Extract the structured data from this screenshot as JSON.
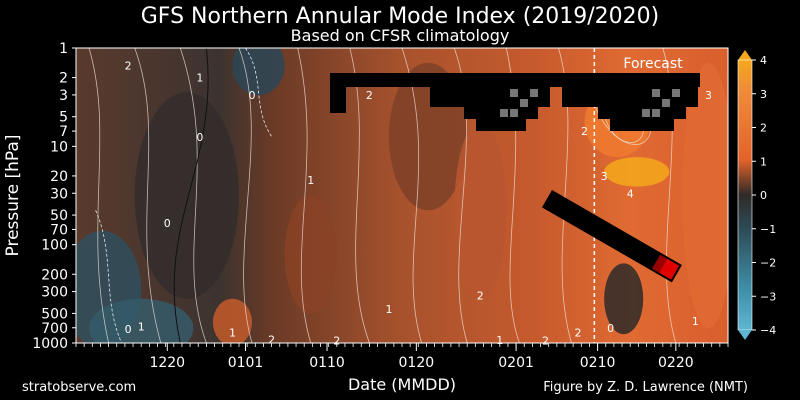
{
  "header": {
    "title": "GFS Northern Annular Mode Index (2019/2020)",
    "subtitle": "Based on CFSR climatology"
  },
  "footer": {
    "left": "stratobserve.com",
    "right": "Figure by Z. D. Lawrence (NMT)"
  },
  "chart_data": {
    "type": "heatmap",
    "title": "GFS Northern Annular Mode Index (2019/2020)",
    "subtitle": "Based on CFSR climatology",
    "xlabel": "Date (MMDD)",
    "ylabel": "Pressure [hPa]",
    "x_ticks": [
      "1220",
      "0101",
      "0110",
      "0120",
      "0201",
      "0210",
      "0220"
    ],
    "y_ticks": [
      1,
      2,
      3,
      5,
      7,
      10,
      20,
      30,
      50,
      70,
      100,
      200,
      300,
      500,
      700,
      1000
    ],
    "y_scale": "log",
    "y_inverted": true,
    "forecast_label": "Forecast",
    "colorbar": {
      "ticks": [
        4,
        3,
        2,
        1,
        0,
        -1,
        -2,
        -3,
        -4
      ],
      "range": [
        -4,
        4
      ],
      "colors": {
        "pos": "#e2632a",
        "neutral": "#2f2a28",
        "neg": "#3f8fa8"
      }
    },
    "contour_labels": [
      {
        "text": "2",
        "x_frac": 0.08,
        "p": 1.5
      },
      {
        "text": "1",
        "x_frac": 0.19,
        "p": 2.0
      },
      {
        "text": "2",
        "x_frac": 0.45,
        "p": 3.0
      },
      {
        "text": "0",
        "x_frac": 0.27,
        "p": 3.0
      },
      {
        "text": "0",
        "x_frac": 0.19,
        "p": 8.0
      },
      {
        "text": "1",
        "x_frac": 0.36,
        "p": 22.0
      },
      {
        "text": "0",
        "x_frac": 0.14,
        "p": 60.0
      },
      {
        "text": "3",
        "x_frac": 0.81,
        "p": 20.0
      },
      {
        "text": "4",
        "x_frac": 0.85,
        "p": 30.0
      },
      {
        "text": "2",
        "x_frac": 0.78,
        "p": 7.0
      },
      {
        "text": "2",
        "x_frac": 0.62,
        "p": 330.0
      },
      {
        "text": "1",
        "x_frac": 0.48,
        "p": 450.0
      },
      {
        "text": "2",
        "x_frac": 0.77,
        "p": 780.0
      },
      {
        "text": "0",
        "x_frac": 0.82,
        "p": 700.0
      },
      {
        "text": "1",
        "x_frac": 0.24,
        "p": 780.0
      },
      {
        "text": "1",
        "x_frac": 0.1,
        "p": 680.0
      },
      {
        "text": "0",
        "x_frac": 0.08,
        "p": 720.0
      },
      {
        "text": "2",
        "x_frac": 0.3,
        "p": 920.0
      },
      {
        "text": "2",
        "x_frac": 0.4,
        "p": 940.0
      },
      {
        "text": "1",
        "x_frac": 0.65,
        "p": 930.0
      },
      {
        "text": "2",
        "x_frac": 0.72,
        "p": 940.0
      },
      {
        "text": "1",
        "x_frac": 0.95,
        "p": 600.0
      },
      {
        "text": "3",
        "x_frac": 0.97,
        "p": 3.0
      }
    ]
  }
}
